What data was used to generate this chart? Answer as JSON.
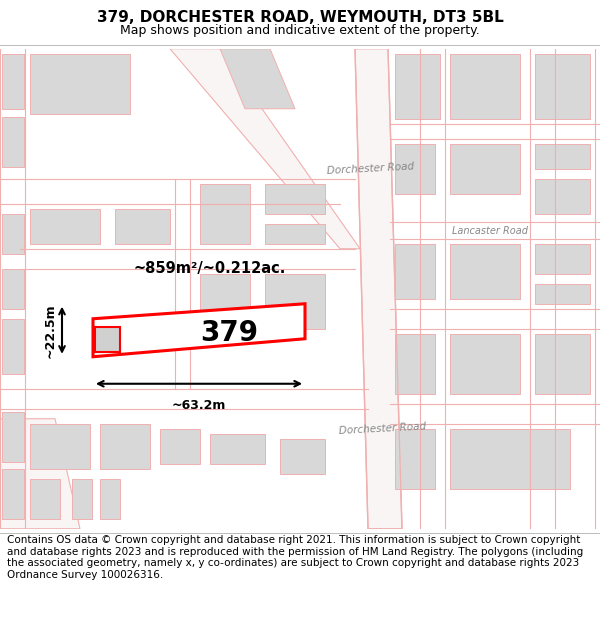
{
  "title_line1": "379, DORCHESTER ROAD, WEYMOUTH, DT3 5BL",
  "title_line2": "Map shows position and indicative extent of the property.",
  "footer_text": "Contains OS data © Crown copyright and database right 2021. This information is subject to Crown copyright and database rights 2023 and is reproduced with the permission of HM Land Registry. The polygons (including the associated geometry, namely x, y co-ordinates) are subject to Crown copyright and database rights 2023 Ordnance Survey 100026316.",
  "plot_number": "379",
  "area_label": "~859m²/~0.212ac.",
  "width_label": "~63.2m",
  "height_label": "~22.5m",
  "highlight_color": "#ff0000",
  "road_line_color": "#f0b0b0",
  "building_fill": "#d8d8d8",
  "building_edge": "#ccaaaa",
  "road_band_color": "#f8f0f0",
  "title_fontsize": 11,
  "subtitle_fontsize": 9,
  "footer_fontsize": 7.5,
  "label_color": "#aaaaaa"
}
